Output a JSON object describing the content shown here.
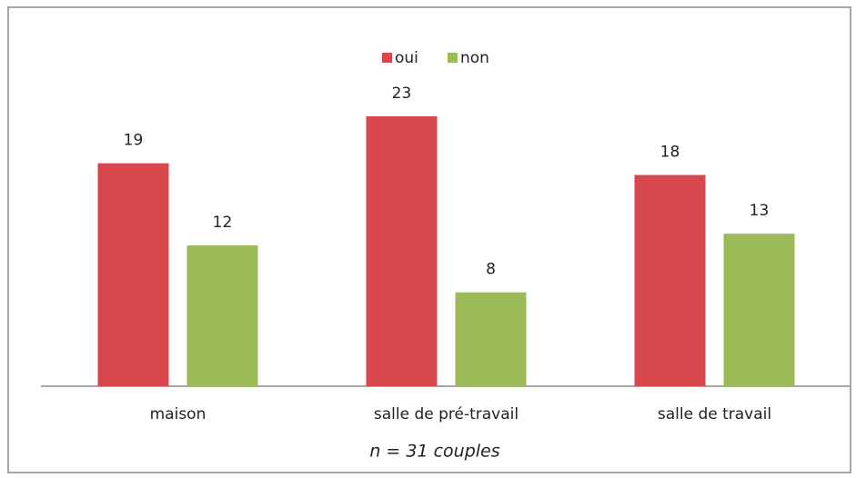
{
  "chart_data": {
    "type": "bar",
    "subtitle": "n = 31 couples",
    "categories": [
      "maison",
      "salle de pré-travail",
      "salle de travail"
    ],
    "series": [
      {
        "name": "oui",
        "color": "#d9474e",
        "values": [
          19,
          23,
          18
        ]
      },
      {
        "name": "non",
        "color": "#9bbb59",
        "values": [
          12,
          8,
          13
        ]
      }
    ],
    "legend": "top"
  }
}
